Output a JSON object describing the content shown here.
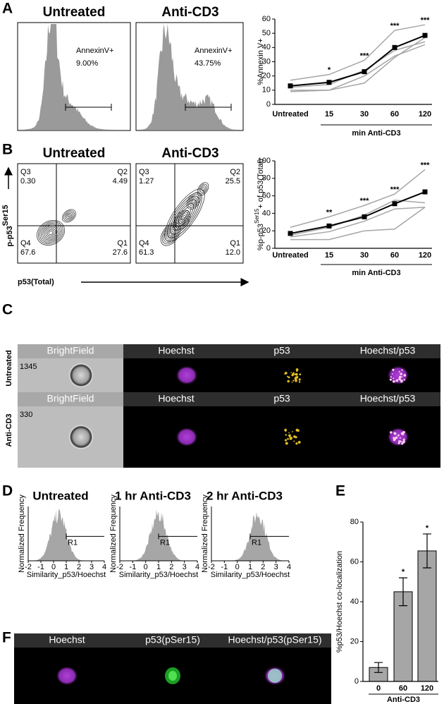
{
  "panel_labels": [
    "A",
    "B",
    "C",
    "D",
    "E",
    "F"
  ],
  "panel_a": {
    "histograms": [
      {
        "title": "Untreated",
        "gate_label": "AnnexinV+",
        "gate_value": "9.00%"
      },
      {
        "title": "Anti-CD3",
        "gate_label": "AnnexinV+",
        "gate_value": "43.75%"
      }
    ]
  },
  "panel_b": {
    "y_label": "p-p53",
    "y_label_sup": "Ser15",
    "x_label": "p53(Total)",
    "plots": [
      {
        "title": "Untreated",
        "quadrants": {
          "q3": [
            "Q3",
            "0.30"
          ],
          "q2": [
            "Q2",
            "4.49"
          ],
          "q4": [
            "Q4",
            "67.6"
          ],
          "q1": [
            "Q1",
            "27.6"
          ]
        }
      },
      {
        "title": "Anti-CD3",
        "quadrants": {
          "q3": [
            "Q3",
            "1.27"
          ],
          "q2": [
            "Q2",
            "25.5"
          ],
          "q4": [
            "Q4",
            "61.3"
          ],
          "q1": [
            "Q1",
            "12.0"
          ]
        }
      }
    ]
  },
  "panel_c": {
    "channels": [
      "BrightField",
      "Hoechst",
      "p53",
      "Hoechst/p53"
    ],
    "rows": [
      {
        "label": "Untreated",
        "count": "1345"
      },
      {
        "label": "Anti-CD3",
        "count": "330"
      }
    ]
  },
  "panel_d": {
    "plots": [
      {
        "title": "Untreated"
      },
      {
        "title": "1 hr Anti-CD3"
      },
      {
        "title": "2 hr Anti-CD3"
      }
    ],
    "x_label": "Similarity_p53/Hoechst",
    "y_label": "Normalized Frequency",
    "gate": "R1",
    "xlim": [
      -2,
      4
    ],
    "xticks": [
      -2,
      -1,
      0,
      1,
      2,
      3,
      4
    ]
  },
  "panel_f": {
    "channels": [
      "Hoechst",
      "p53(pSer15)",
      "Hoechst/p53(pSer15)"
    ]
  },
  "chart_data": [
    {
      "type": "line",
      "y_label": "%Annexin V+",
      "categories": [
        "Untreated",
        "15",
        "30",
        "60",
        "120"
      ],
      "group_label": "min Anti-CD3",
      "ylim": [
        0,
        60
      ],
      "yticks": [
        0,
        10,
        20,
        30,
        40,
        50,
        60
      ],
      "series": [
        {
          "color": "#a6a6a6",
          "values": [
            17,
            21,
            31,
            52,
            56
          ]
        },
        {
          "color": "#a6a6a6",
          "values": [
            12,
            14,
            24,
            38,
            44
          ]
        },
        {
          "color": "#a6a6a6",
          "values": [
            10,
            10,
            20,
            34,
            42
          ]
        },
        {
          "color": "#a6a6a6",
          "values": [
            9,
            10,
            15,
            33,
            47
          ]
        },
        {
          "color": "#000000",
          "marker": "square",
          "values": [
            13,
            15.5,
            23,
            40,
            48.5
          ]
        }
      ],
      "annotations": [
        {
          "x": "15",
          "text": "*"
        },
        {
          "x": "30",
          "text": "***"
        },
        {
          "x": "60",
          "text": "***"
        },
        {
          "x": "120",
          "text": "***"
        }
      ]
    },
    {
      "type": "line",
      "y_label": "%p-p53",
      "y_label_sup": "Ser15",
      "y_label_end": "+ of p53(Total)",
      "categories": [
        "Untreated",
        "15",
        "30",
        "60",
        "120"
      ],
      "group_label": "min Anti-CD3",
      "ylim": [
        0,
        100
      ],
      "yticks": [
        0,
        20,
        40,
        60,
        80,
        100
      ],
      "series": [
        {
          "color": "#a6a6a6",
          "values": [
            24,
            36,
            49,
            62,
            90
          ]
        },
        {
          "color": "#a6a6a6",
          "values": [
            15,
            24,
            38,
            55,
            52
          ]
        },
        {
          "color": "#a6a6a6",
          "values": [
            13,
            19,
            31,
            45,
            47
          ]
        },
        {
          "color": "#a6a6a6",
          "values": [
            10,
            10,
            20,
            22,
            47
          ]
        },
        {
          "color": "#000000",
          "marker": "square",
          "values": [
            17,
            25.5,
            36,
            51,
            64.5
          ]
        }
      ],
      "annotations": [
        {
          "x": "15",
          "text": "**"
        },
        {
          "x": "30",
          "text": "***"
        },
        {
          "x": "60",
          "text": "***"
        },
        {
          "x": "120",
          "text": "***"
        }
      ]
    },
    {
      "type": "bar",
      "y_label": "%p53/Hoechst co-localization",
      "x_label": "Anti-CD3",
      "categories": [
        "0",
        "60",
        "120"
      ],
      "values": [
        7,
        45,
        65.5
      ],
      "errors": [
        2.5,
        7,
        8.5
      ],
      "color": "#a6a6a6",
      "ylim": [
        0,
        80
      ],
      "yticks": [
        0,
        20,
        40,
        60,
        80
      ],
      "annotations": [
        {
          "x": "60",
          "text": "*"
        },
        {
          "x": "120",
          "text": "*"
        }
      ]
    }
  ]
}
